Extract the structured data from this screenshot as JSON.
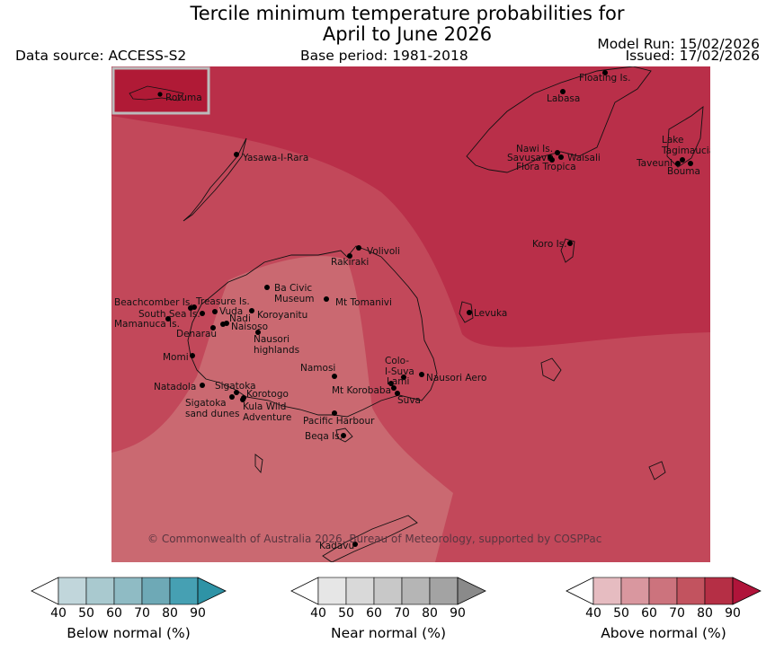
{
  "title": {
    "line1": "Tercile minimum temperature probabilities for",
    "line2": "April to June 2026"
  },
  "header": {
    "data_source": "Data source: ACCESS-S2",
    "base_period": "Base period: 1981-2018",
    "model_run": "Model Run: 15/02/2026",
    "issued": "Issued: 17/02/2026"
  },
  "map": {
    "copyright": "© Commonwealth of Australia 2026, Bureau of Meteorology, supported by COSPPac",
    "inset_label": "Rotuma",
    "places": [
      {
        "name": "Floating Is."
      },
      {
        "name": "Labasa"
      },
      {
        "name": "Yasawa-I-Rara"
      },
      {
        "name": "Nawi Is."
      },
      {
        "name": "Savusavu"
      },
      {
        "name": "Waisali"
      },
      {
        "name": "Flora Tropica"
      },
      {
        "name": "Lake Tagimaucia"
      },
      {
        "name": "Taveuni"
      },
      {
        "name": "Bouma"
      },
      {
        "name": "Koro Is."
      },
      {
        "name": "Volivoli"
      },
      {
        "name": "Rakiraki"
      },
      {
        "name": "Ba Civic Museum"
      },
      {
        "name": "Mt Tomanivi"
      },
      {
        "name": "Levuka"
      },
      {
        "name": "Beachcomber Is."
      },
      {
        "name": "Treasure Is."
      },
      {
        "name": "South Sea Is."
      },
      {
        "name": "Vuda"
      },
      {
        "name": "Koroyanitu"
      },
      {
        "name": "Nadi"
      },
      {
        "name": "Mamanuca Is."
      },
      {
        "name": "Naisoso"
      },
      {
        "name": "Denarau"
      },
      {
        "name": "Nausori highlands"
      },
      {
        "name": "Momi"
      },
      {
        "name": "Namosi"
      },
      {
        "name": "Colo-I-Suva"
      },
      {
        "name": "Natadola"
      },
      {
        "name": "Sigatoka"
      },
      {
        "name": "Lami"
      },
      {
        "name": "Nausori Aero"
      },
      {
        "name": "Korotogo"
      },
      {
        "name": "Mt Korobaba"
      },
      {
        "name": "Sigatoka sand dunes"
      },
      {
        "name": "Kula Wild Adventure"
      },
      {
        "name": "Suva"
      },
      {
        "name": "Pacific Harbour"
      },
      {
        "name": "Beqa Is."
      },
      {
        "name": "Kadavu"
      }
    ]
  },
  "colorbars": [
    {
      "label": "Below normal (%)",
      "ticks": [
        "40",
        "50",
        "60",
        "70",
        "80",
        "90"
      ],
      "colors": [
        "#c1d6db",
        "#a9c9cf",
        "#8fbbc4",
        "#6ea9b6",
        "#46a0b3",
        "#2e93a6"
      ]
    },
    {
      "label": "Near normal (%)",
      "ticks": [
        "40",
        "50",
        "60",
        "70",
        "80",
        "90"
      ],
      "colors": [
        "#e6e6e6",
        "#d9d9d9",
        "#c8c8c8",
        "#b5b5b5",
        "#a3a3a3",
        "#8a8a8a"
      ]
    },
    {
      "label": "Above normal (%)",
      "ticks": [
        "40",
        "50",
        "60",
        "70",
        "80",
        "90"
      ],
      "colors": [
        "#e6bcc1",
        "#d9979f",
        "#cc737d",
        "#c2535f",
        "#b52f45",
        "#b0143a"
      ]
    }
  ]
}
